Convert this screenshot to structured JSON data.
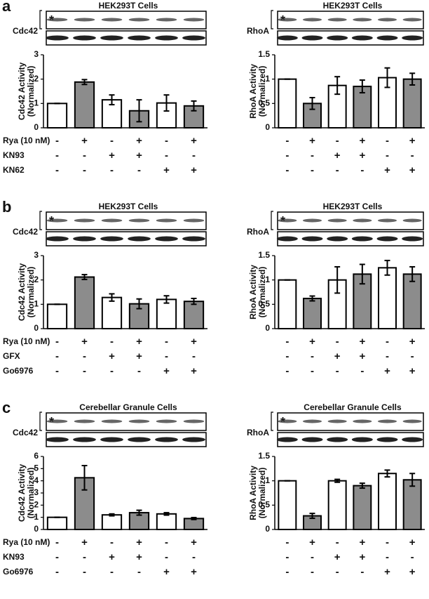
{
  "chart_data": [
    {
      "type": "bar",
      "panel": "a",
      "title": "HEK293T Cells",
      "blot_label": "Cdc42",
      "asterisk": "*",
      "ylabel": [
        "Cdc42 Activity",
        "(Normalized)"
      ],
      "ylim": [
        0,
        3
      ],
      "yticks": [
        0,
        1,
        2,
        3
      ],
      "bar_colors": [
        "#ffffff",
        "#8c8c8c",
        "#ffffff",
        "#8c8c8c",
        "#ffffff",
        "#8c8c8c"
      ],
      "values": [
        1,
        1.88,
        1.15,
        0.7,
        1.02,
        0.9
      ],
      "errors": [
        0,
        0.1,
        0.2,
        0.45,
        0.33,
        0.2
      ],
      "treatments": [
        {
          "name": "Rya (10 nM)",
          "signs": [
            "-",
            "+",
            "-",
            "+",
            "-",
            "+"
          ]
        },
        {
          "name": "KN93",
          "signs": [
            "-",
            "-",
            "+",
            "+",
            "-",
            "-"
          ]
        },
        {
          "name": "KN62",
          "signs": [
            "-",
            "-",
            "-",
            "-",
            "+",
            "+"
          ]
        }
      ]
    },
    {
      "type": "bar",
      "title": "HEK293T Cells",
      "blot_label": "RhoA",
      "asterisk": "*",
      "ylabel": [
        "RhoA Activity",
        "(Normalized)"
      ],
      "ylim": [
        0,
        1.5
      ],
      "yticks": [
        0,
        0.5,
        1,
        1.5
      ],
      "bar_colors": [
        "#ffffff",
        "#8c8c8c",
        "#ffffff",
        "#8c8c8c",
        "#ffffff",
        "#8c8c8c"
      ],
      "values": [
        1,
        0.5,
        0.87,
        0.85,
        1.03,
        1.0
      ],
      "errors": [
        0,
        0.12,
        0.18,
        0.13,
        0.2,
        0.12
      ],
      "signs": [
        [
          "-",
          "+",
          "-",
          "+",
          "-",
          "+"
        ],
        [
          "-",
          "-",
          "+",
          "+",
          "-",
          "-"
        ],
        [
          "-",
          "-",
          "-",
          "-",
          "+",
          "+"
        ]
      ]
    },
    {
      "type": "bar",
      "panel": "b",
      "title": "HEK293T Cells",
      "blot_label": "Cdc42",
      "asterisk": "*",
      "ylabel": [
        "Cdc42 Activity",
        "(Normalized)"
      ],
      "ylim": [
        0,
        3
      ],
      "yticks": [
        0,
        1,
        2,
        3
      ],
      "bar_colors": [
        "#ffffff",
        "#8c8c8c",
        "#ffffff",
        "#8c8c8c",
        "#ffffff",
        "#8c8c8c"
      ],
      "values": [
        1,
        2.12,
        1.28,
        1.02,
        1.2,
        1.12
      ],
      "errors": [
        0,
        0.1,
        0.15,
        0.2,
        0.15,
        0.12
      ],
      "treatments": [
        {
          "name": "Rya (10 nM)",
          "signs": [
            "-",
            "+",
            "-",
            "+",
            "-",
            "+"
          ]
        },
        {
          "name": "GFX",
          "signs": [
            "-",
            "-",
            "+",
            "+",
            "-",
            "-"
          ]
        },
        {
          "name": "Go6976",
          "signs": [
            "-",
            "-",
            "-",
            "-",
            "+",
            "+"
          ]
        }
      ]
    },
    {
      "type": "bar",
      "title": "HEK293T Cells",
      "blot_label": "RhoA",
      "asterisk": "*",
      "ylabel": [
        "RhoA Activity",
        "(Normalized)"
      ],
      "ylim": [
        0,
        1.5
      ],
      "yticks": [
        0,
        0.5,
        1,
        1.5
      ],
      "bar_colors": [
        "#ffffff",
        "#8c8c8c",
        "#ffffff",
        "#8c8c8c",
        "#ffffff",
        "#8c8c8c"
      ],
      "values": [
        1,
        0.62,
        1.0,
        1.12,
        1.25,
        1.12
      ],
      "errors": [
        0,
        0.05,
        0.27,
        0.2,
        0.15,
        0.15
      ],
      "signs": [
        [
          "-",
          "+",
          "-",
          "+",
          "-",
          "+"
        ],
        [
          "-",
          "-",
          "+",
          "+",
          "-",
          "-"
        ],
        [
          "-",
          "-",
          "-",
          "-",
          "+",
          "+"
        ]
      ]
    },
    {
      "type": "bar",
      "panel": "c",
      "title": "Cerebellar Granule Cells",
      "blot_label": "Cdc42",
      "asterisk": "*",
      "ylabel": [
        "Cdc42 Activity",
        "(Normalized)"
      ],
      "ylim": [
        0,
        6
      ],
      "yticks": [
        0,
        1,
        2,
        3,
        4,
        5,
        6
      ],
      "bar_colors": [
        "#ffffff",
        "#8c8c8c",
        "#ffffff",
        "#8c8c8c",
        "#ffffff",
        "#8c8c8c"
      ],
      "values": [
        1,
        4.25,
        1.2,
        1.38,
        1.28,
        0.9
      ],
      "errors": [
        0,
        1.0,
        0.08,
        0.2,
        0.1,
        0.08
      ],
      "treatments": [
        {
          "name": "Rya (10 nM)",
          "signs": [
            "-",
            "+",
            "-",
            "+",
            "-",
            "+"
          ]
        },
        {
          "name": "KN93",
          "signs": [
            "-",
            "-",
            "+",
            "+",
            "-",
            "-"
          ]
        },
        {
          "name": "Go6976",
          "signs": [
            "-",
            "-",
            "-",
            "-",
            "+",
            "+"
          ]
        }
      ]
    },
    {
      "type": "bar",
      "title": "Cerebellar Granule Cells",
      "blot_label": "RhoA",
      "asterisk": "*",
      "ylabel": [
        "RhoA Activity",
        "(Normalized)"
      ],
      "ylim": [
        0,
        1.5
      ],
      "yticks": [
        0,
        0.5,
        1,
        1.5
      ],
      "bar_colors": [
        "#ffffff",
        "#8c8c8c",
        "#ffffff",
        "#8c8c8c",
        "#ffffff",
        "#8c8c8c"
      ],
      "values": [
        1,
        0.28,
        1.0,
        0.9,
        1.15,
        1.02
      ],
      "errors": [
        0,
        0.05,
        0.03,
        0.05,
        0.07,
        0.13
      ],
      "signs": [
        [
          "-",
          "+",
          "-",
          "+",
          "-",
          "+"
        ],
        [
          "-",
          "-",
          "+",
          "+",
          "-",
          "-"
        ],
        [
          "-",
          "-",
          "-",
          "-",
          "+",
          "+"
        ]
      ]
    }
  ]
}
